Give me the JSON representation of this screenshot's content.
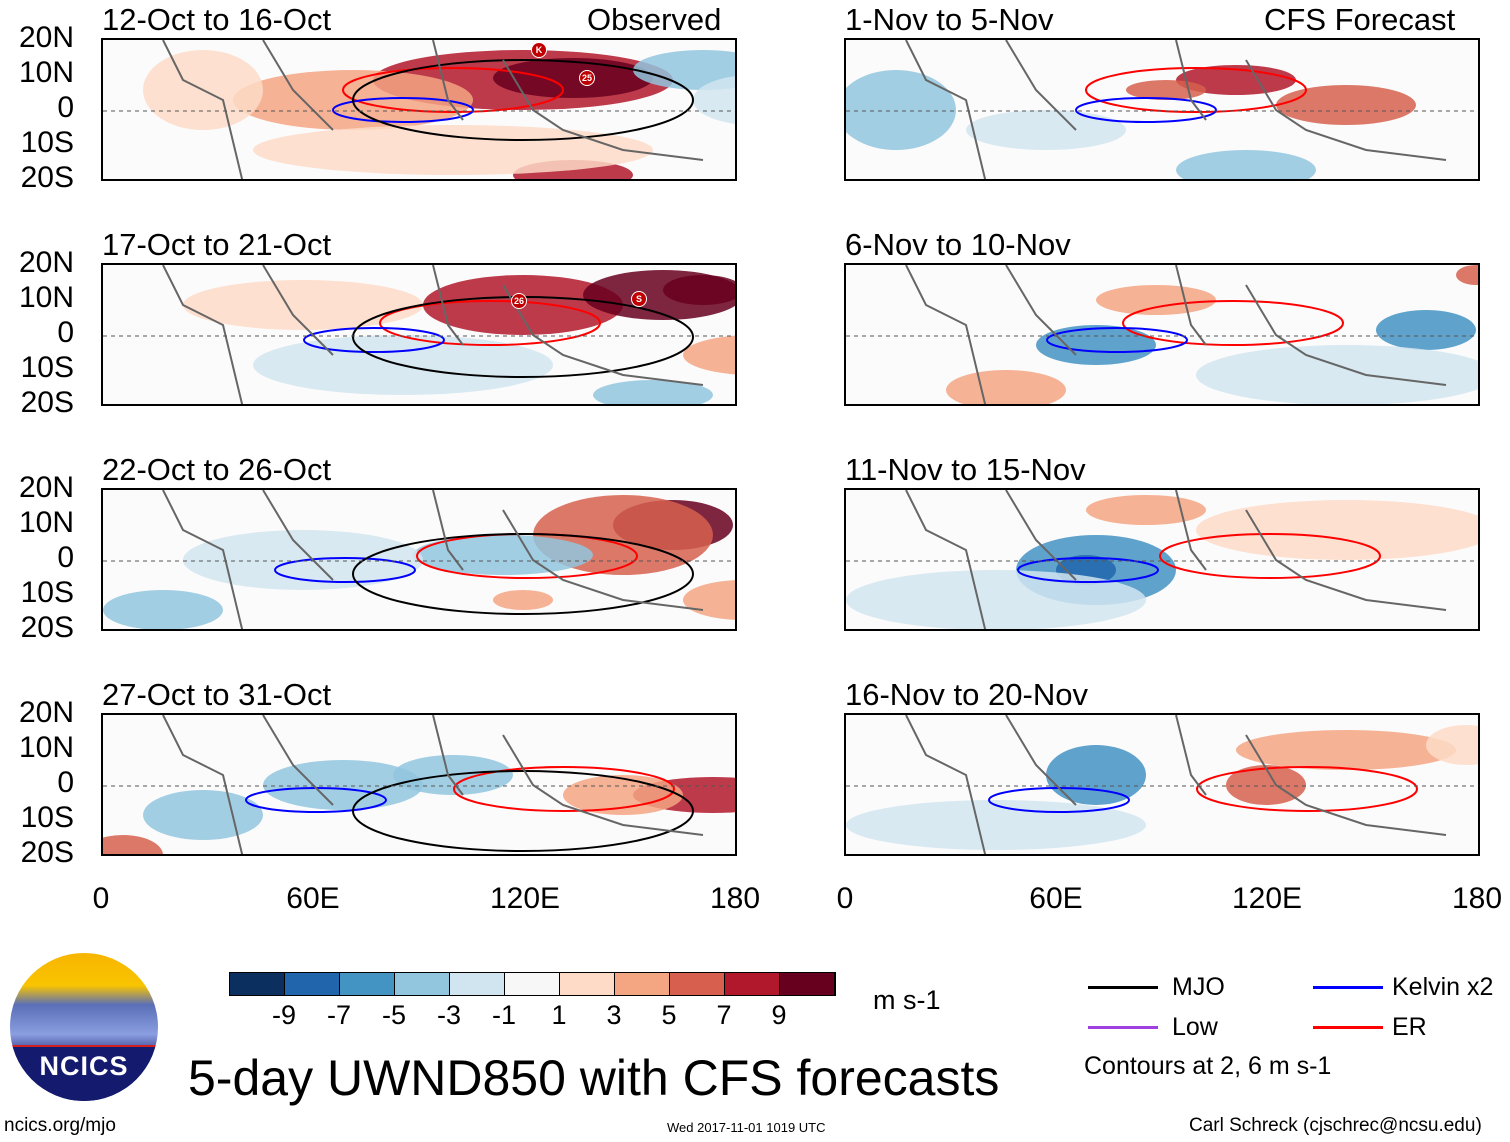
{
  "title": "5-day UWND850 with CFS forecasts",
  "logo_text": "NCICS",
  "footer": {
    "left": "ncics.org/mjo",
    "center": "Wed 2017-11-01 1019 UTC",
    "right": "Carl Schreck (cjschrec@ncsu.edu)"
  },
  "header": {
    "observed": "Observed",
    "forecast": "CFS Forecast"
  },
  "panels_left": [
    {
      "title": "12-Oct to 16-Oct",
      "storms": [
        "K",
        "25"
      ]
    },
    {
      "title": "17-Oct to 21-Oct",
      "storms": [
        "26",
        "S"
      ]
    },
    {
      "title": "22-Oct to 26-Oct",
      "storms": []
    },
    {
      "title": "27-Oct to 31-Oct",
      "storms": []
    }
  ],
  "panels_right": [
    {
      "title": "1-Nov to 5-Nov"
    },
    {
      "title": "6-Nov to 10-Nov"
    },
    {
      "title": "11-Nov to 15-Nov"
    },
    {
      "title": "16-Nov to 20-Nov"
    }
  ],
  "lat_labels": [
    "20N",
    "10N",
    "0",
    "10S",
    "20S"
  ],
  "lon_labels": [
    "0",
    "60E",
    "120E",
    "180"
  ],
  "colorbar": {
    "labels": [
      "-9",
      "-7",
      "-5",
      "-3",
      "-1",
      "1",
      "3",
      "5",
      "7",
      "9"
    ],
    "units": "m s-1",
    "colors": [
      "#0b2f5e",
      "#2166ac",
      "#4393c3",
      "#92c5de",
      "#d1e5f0",
      "#f7f7f7",
      "#fddbc7",
      "#f4a582",
      "#d6604d",
      "#b2182b",
      "#67001f"
    ]
  },
  "legend": {
    "items": [
      {
        "label": "MJO",
        "color": "#000000"
      },
      {
        "label": "Kelvin x2",
        "color": "#0000ff"
      },
      {
        "label": "Low",
        "color": "#a040e0"
      },
      {
        "label": "ER",
        "color": "#ff0000"
      }
    ],
    "note": "Contours at 2, 6 m s-1"
  }
}
